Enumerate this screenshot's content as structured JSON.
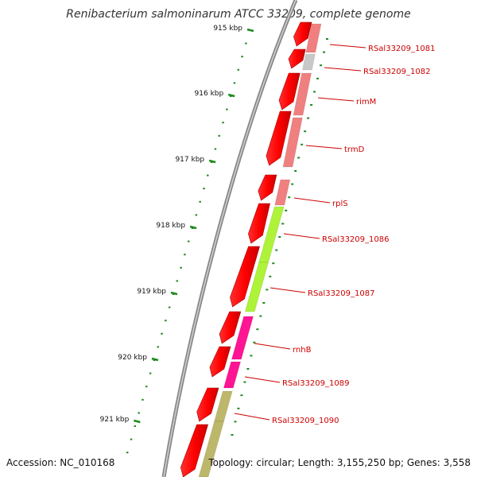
{
  "title": "Renibacterium salmoninarum ATCC 33209, complete genome",
  "footer": {
    "accession": "Accession: NC_010168",
    "info": "Topology: circular; Length: 3,155,250 bp; Genes: 3,558"
  },
  "colors": {
    "backbone": "#888888",
    "forward_cds": "#ff0000",
    "tick": "#1e8a1e",
    "label": "#cc0000",
    "salmon_feature": "#f08080",
    "grey_feature": "#c8c8c8",
    "green_feature": "#aef23a",
    "magenta_feature": "#ff1493",
    "olive_feature": "#bdb76b"
  },
  "axis": {
    "unit": "kbp",
    "ticks": [
      "915 kbp",
      "916 kbp",
      "917 kbp",
      "918 kbp",
      "919 kbp",
      "920 kbp",
      "921 kbp"
    ]
  },
  "genes": [
    {
      "label": "RSal33209_1081",
      "color": "salmon"
    },
    {
      "label": "RSal33209_1082",
      "color": "grey"
    },
    {
      "label": "rimM",
      "color": "salmon"
    },
    {
      "label": "trmD",
      "color": "salmon"
    },
    {
      "label": "rplS",
      "color": "salmon"
    },
    {
      "label": "RSal33209_1086",
      "color": "green"
    },
    {
      "label": "RSal33209_1087",
      "color": "green"
    },
    {
      "label": "rnhB",
      "color": "magenta"
    },
    {
      "label": "RSal33209_1089",
      "color": "magenta"
    },
    {
      "label": "RSal33209_1090",
      "color": "olive"
    }
  ]
}
